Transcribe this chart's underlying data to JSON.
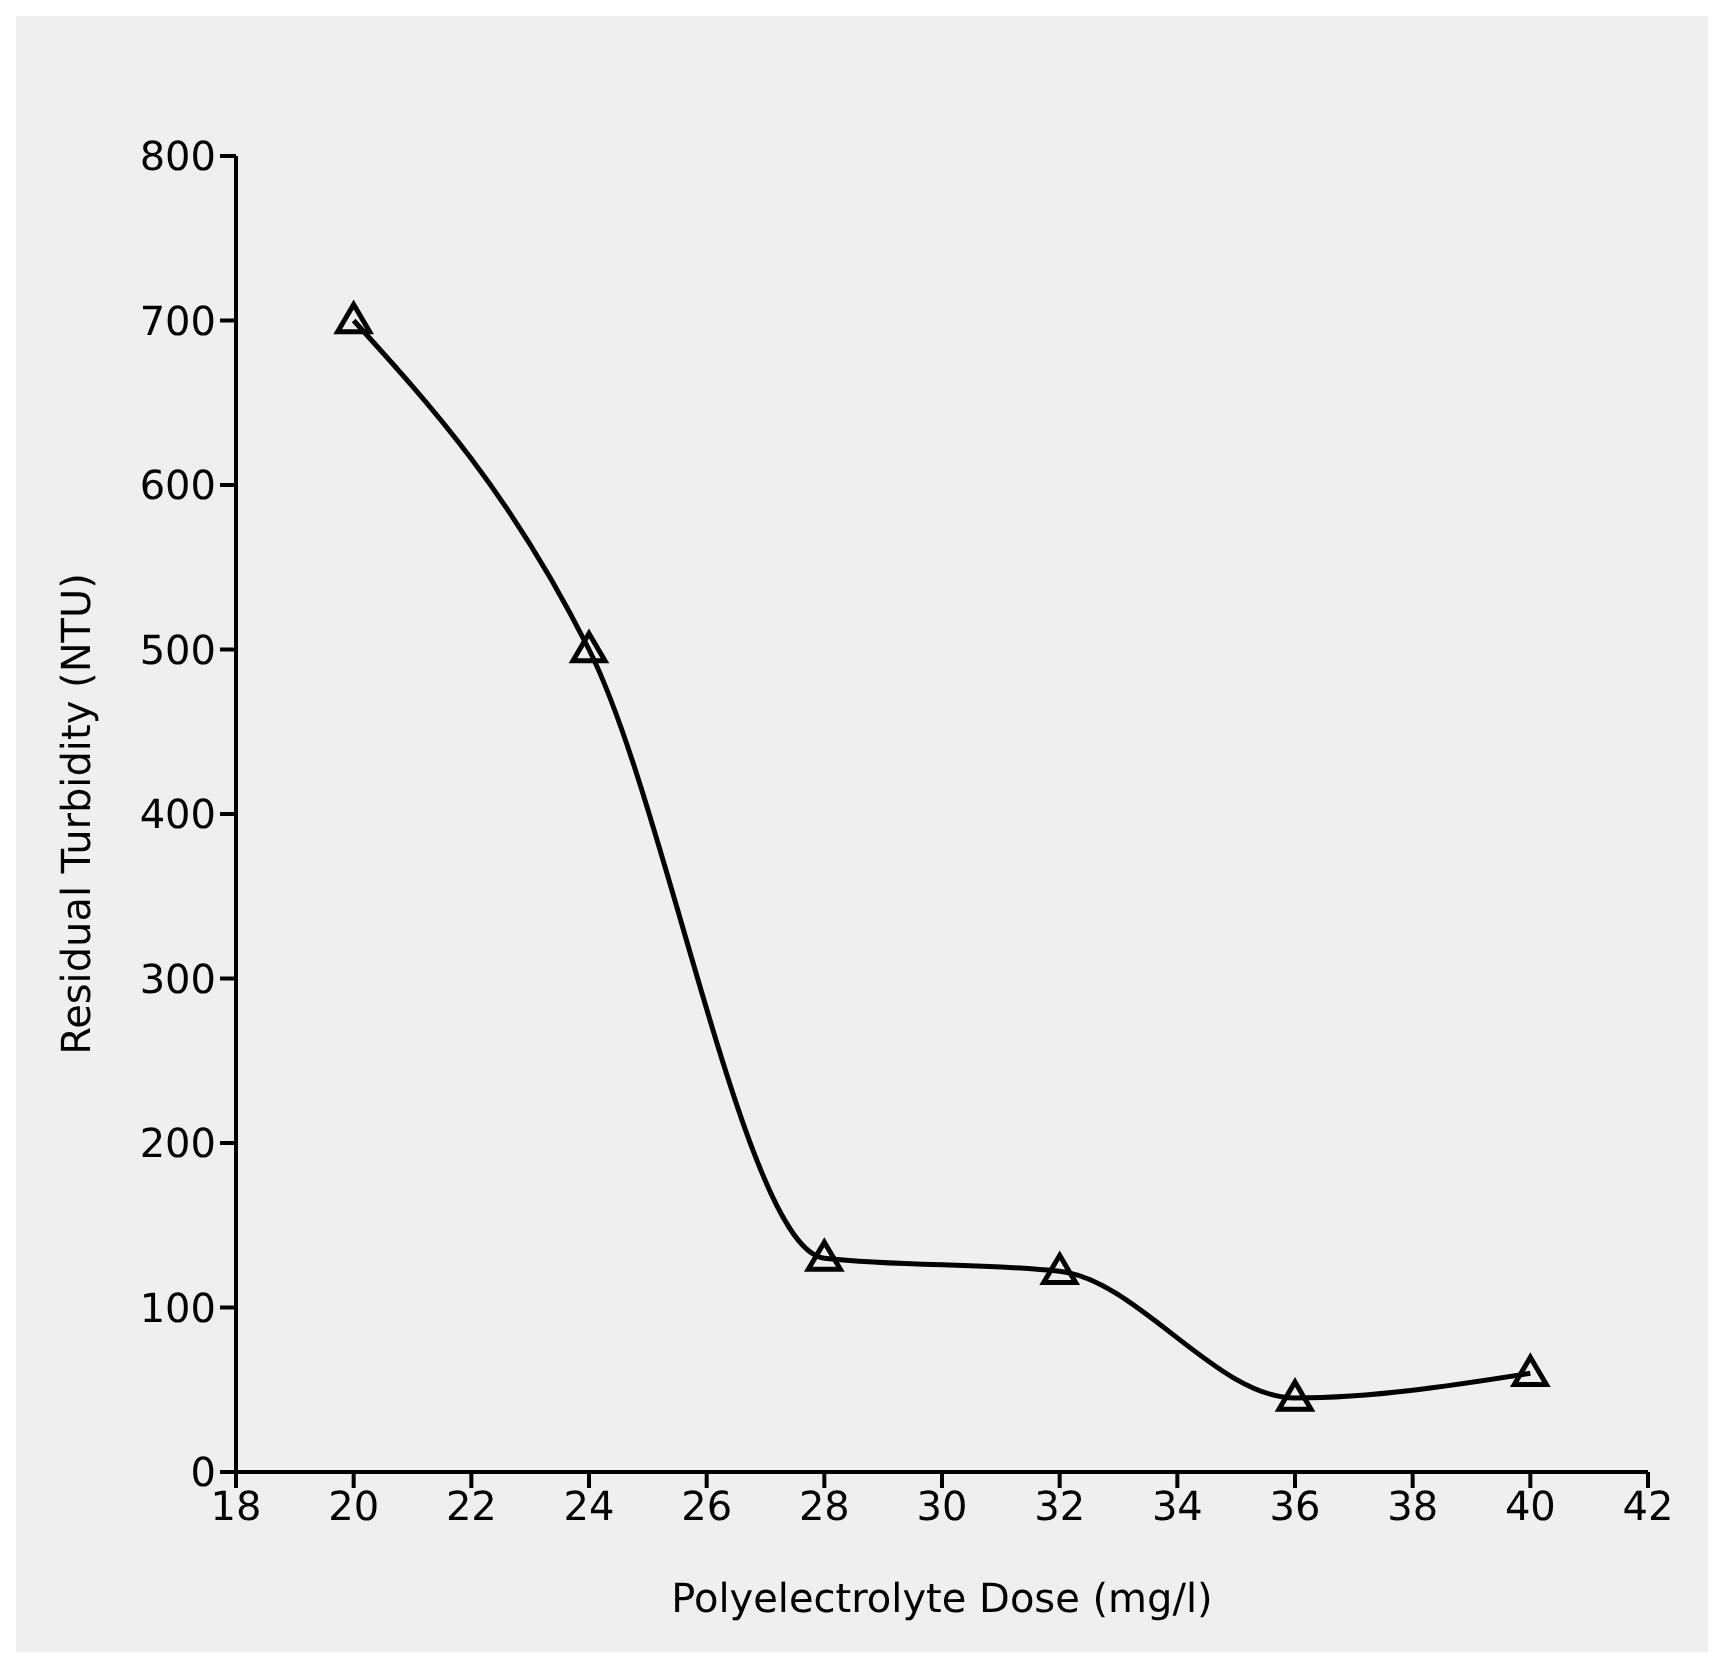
{
  "chart_data": {
    "type": "line",
    "xlabel": "Polyelectrolyte Dose (mg/l)",
    "ylabel": "Residual Turbidity (NTU)",
    "x": [
      20,
      24,
      28,
      32,
      36,
      40
    ],
    "series": [
      {
        "color": "#000000",
        "values": [
          700,
          500,
          130,
          122,
          45,
          60
        ]
      }
    ],
    "xlim": [
      18,
      42
    ],
    "xticks": [
      18,
      20,
      22,
      24,
      26,
      28,
      30,
      32,
      34,
      36,
      38,
      40,
      42
    ],
    "ylim": [
      0,
      800
    ],
    "yticks": [
      0,
      100,
      200,
      300,
      400,
      500,
      600,
      700,
      800
    ],
    "marker": "triangle",
    "line_style": "solid",
    "grid": false,
    "legend": false
  }
}
